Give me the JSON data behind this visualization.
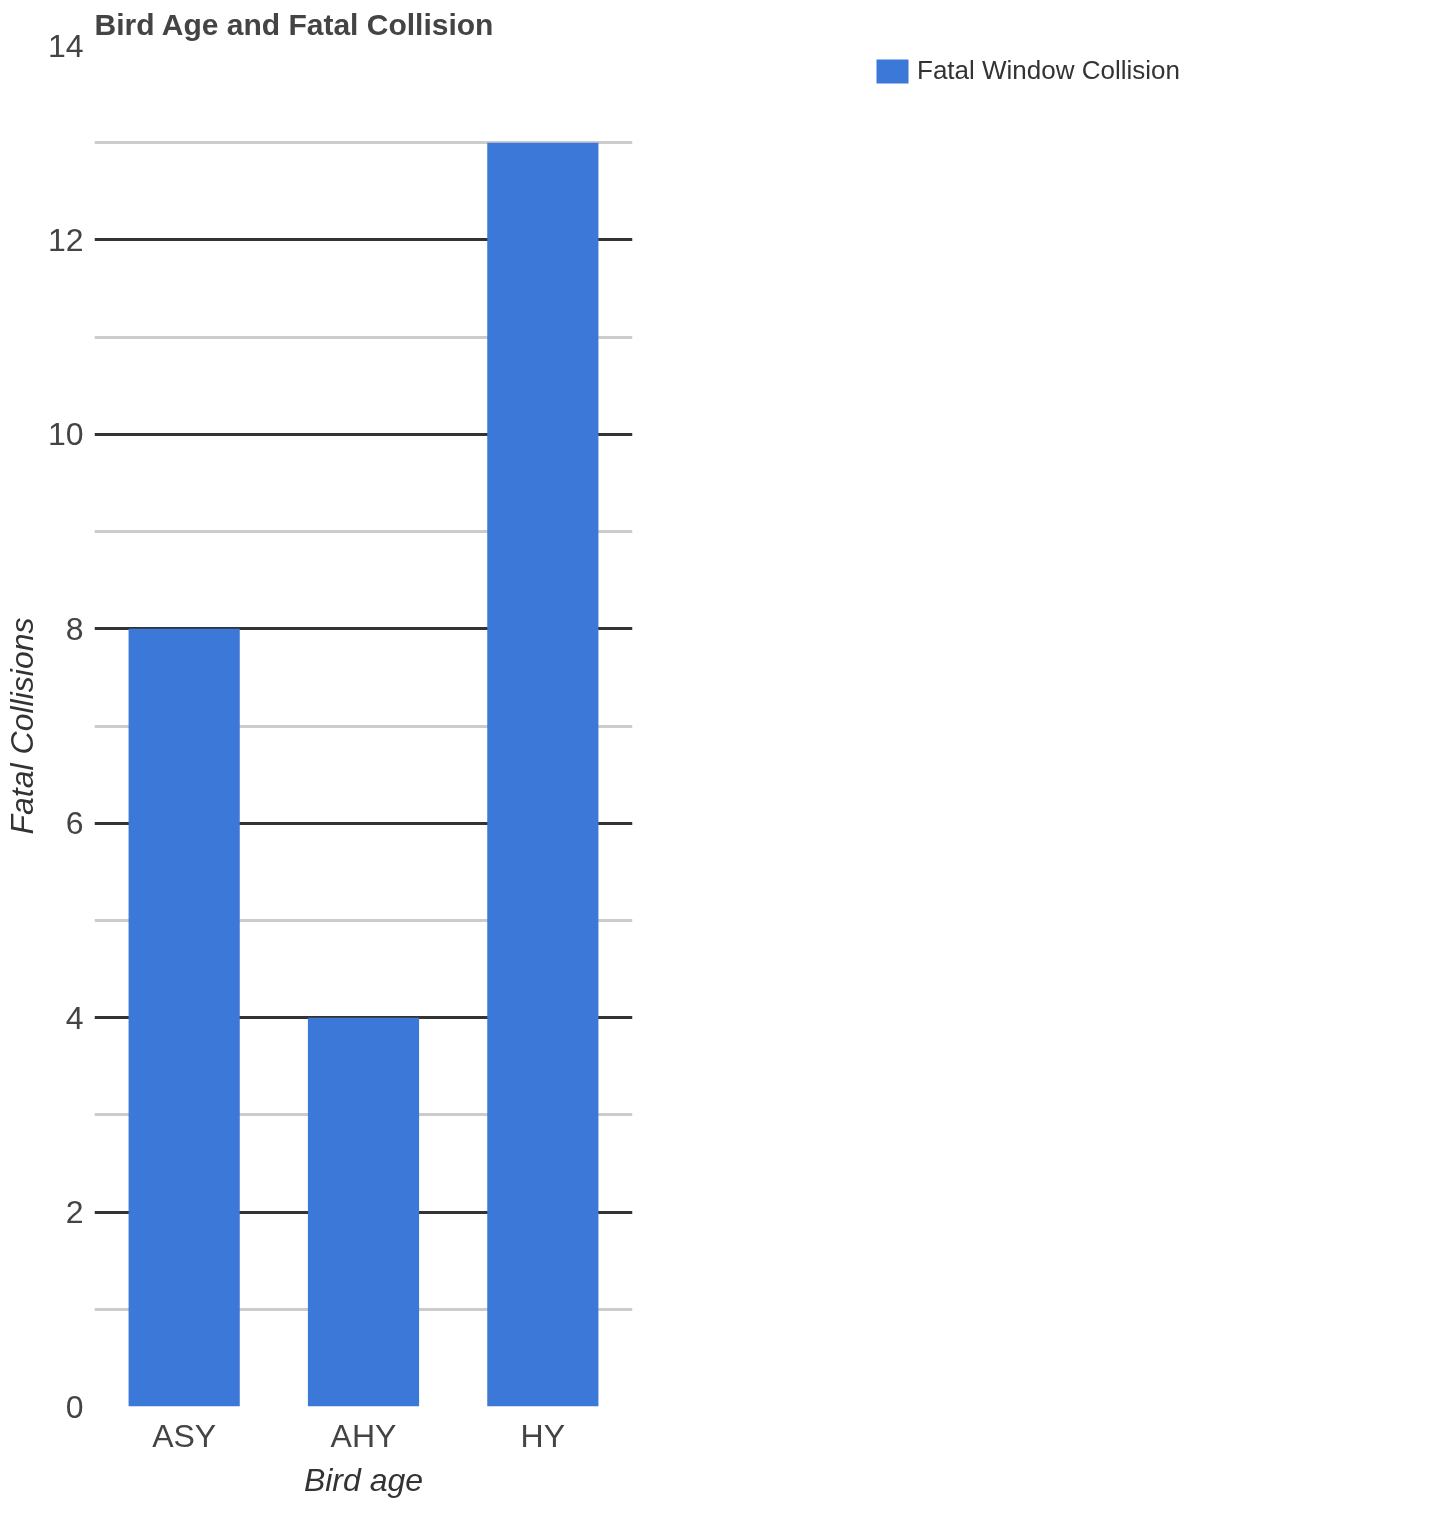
{
  "chart_data": {
    "type": "bar",
    "title": "Bird Age and Fatal Collision",
    "xlabel": "Bird age",
    "ylabel": "Fatal Collisions",
    "categories": [
      "ASY",
      "AHY",
      "HY"
    ],
    "series": [
      {
        "name": "Fatal Window Collision",
        "color": "#3c78d8",
        "values": [
          8,
          4,
          13
        ]
      }
    ],
    "ylim": [
      0,
      14
    ],
    "yticks": [
      0,
      2,
      4,
      6,
      8,
      10,
      12,
      14
    ],
    "grid": "y",
    "legend": "top right"
  }
}
